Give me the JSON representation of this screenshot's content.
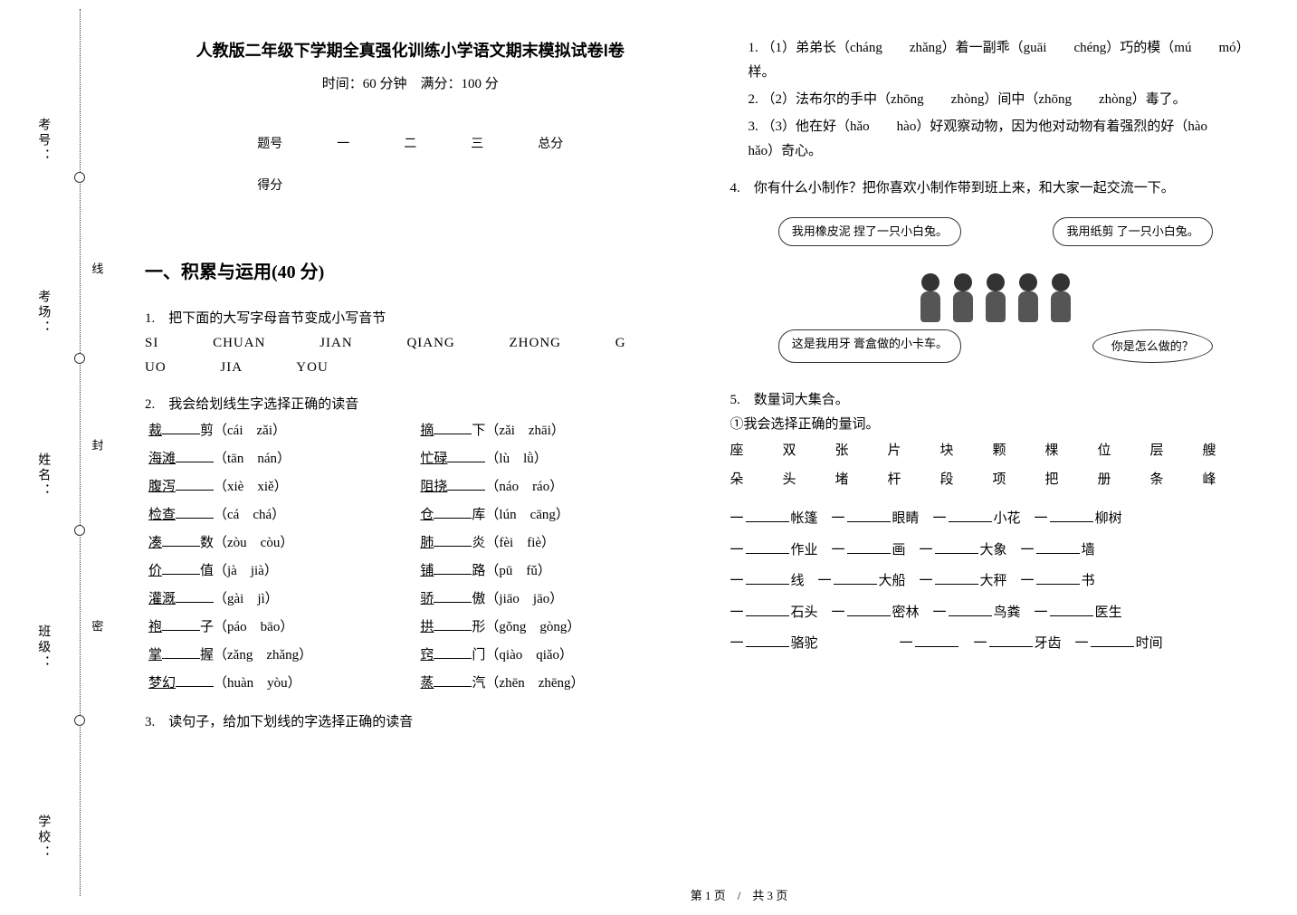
{
  "strip": {
    "labels": [
      "考号：",
      "考场：",
      "姓名：",
      "班级：",
      "学校："
    ],
    "side_minis": [
      "线",
      "封",
      "密"
    ]
  },
  "header": {
    "title": "人教版二年级下学期全真强化训练小学语文期末模拟试卷Ⅰ卷",
    "subtitle": "时间：60 分钟　满分：100 分"
  },
  "score_table": {
    "row1": [
      "题号",
      "一",
      "二",
      "三",
      "总分"
    ],
    "row2": [
      "得分",
      "",
      "",
      "",
      ""
    ]
  },
  "section1_title": "一、积累与运用(40 分)",
  "q1": {
    "prompt": "1.　把下面的大写字母音节变成小写音节",
    "line1": [
      "SI",
      "CHUAN",
      "JIAN",
      "QIANG",
      "ZHONG",
      "G"
    ],
    "line2": [
      "UO",
      "JIA",
      "YOU"
    ]
  },
  "q2": {
    "prompt": "2.　我会给划线生字选择正确的读音",
    "rows": [
      [
        "裁",
        "剪（cái",
        "zǎi）",
        "摘",
        "下（zǎi",
        "zhāi）"
      ],
      [
        "海滩",
        "（tān",
        "nán）",
        "忙碌",
        "（lù",
        "lǜ）"
      ],
      [
        "腹泻",
        "（xiè",
        "xiě）",
        "阻挠",
        "（náo",
        "ráo）"
      ],
      [
        "检查",
        "（cá",
        "chá）",
        "仓",
        "库（lún",
        "cāng）"
      ],
      [
        "凑",
        "数（zòu",
        "còu）",
        "肺",
        "炎（fèi",
        "fiè）"
      ],
      [
        "价",
        "值（jà",
        "jià）",
        "铺",
        "路（pū",
        "fǔ）"
      ],
      [
        "灌溉",
        "（gài",
        "jì）",
        "骄",
        "傲（jiāo",
        "jāo）"
      ],
      [
        "袍",
        "子（páo",
        "bāo）",
        "拱",
        "形（gǒng",
        "gòng）"
      ],
      [
        "掌",
        "握（zǎng",
        "zhǎng）",
        "窍",
        "门（qiào",
        "qiǎo）"
      ],
      [
        "梦幻",
        "（huàn",
        "yòu）",
        "蒸",
        "汽（zhēn",
        "zhēng）"
      ]
    ]
  },
  "q3": {
    "prompt": "3.　读句子，给加下划线的字选择正确的读音",
    "items": [
      "（1）弟弟长（cháng　　zhǎng）着一副乖（guāi　　chéng）巧的模（mú　　mó）样。",
      "（2）法布尔的手中（zhōng　　zhòng）间中（zhōng　　zhòng）毒了。",
      "（3）他在好（hǎo　　hào）好观察动物，因为他对动物有着强烈的好（hào　　hǎo）奇心。"
    ]
  },
  "q4": {
    "prompt": "4.　你有什么小制作？把你喜欢小制作带到班上来，和大家一起交流一下。",
    "bubbles": {
      "tl": "我用橡皮泥\n捏了一只小白兔。",
      "tr": "我用纸剪\n了一只小白兔。",
      "bl": "这是我用牙\n膏盒做的小卡车。",
      "br": "你是怎么做的？"
    }
  },
  "q5": {
    "prompt": "5.　数量词大集合。",
    "sub": "①我会选择正确的量词。",
    "measure_words": [
      "座",
      "双",
      "张",
      "片",
      "块",
      "颗",
      "棵",
      "位",
      "层",
      "艘",
      "朵",
      "头",
      "堵",
      "杆",
      "段",
      "项",
      "把",
      "册",
      "条",
      "峰"
    ],
    "fills": [
      [
        "帐篷",
        "眼睛",
        "小花",
        "柳树"
      ],
      [
        "作业",
        "画",
        "大象",
        "墙"
      ],
      [
        "线",
        "大船",
        "大秤",
        "书"
      ],
      [
        "石头",
        "密林",
        "鸟粪",
        "医生"
      ],
      [
        "骆驼",
        "",
        "牙齿",
        "时间"
      ]
    ]
  },
  "footer": "第 1 页　/　共 3 页",
  "colors": {
    "text": "#000000",
    "background": "#ffffff",
    "dotted": "#333333"
  }
}
